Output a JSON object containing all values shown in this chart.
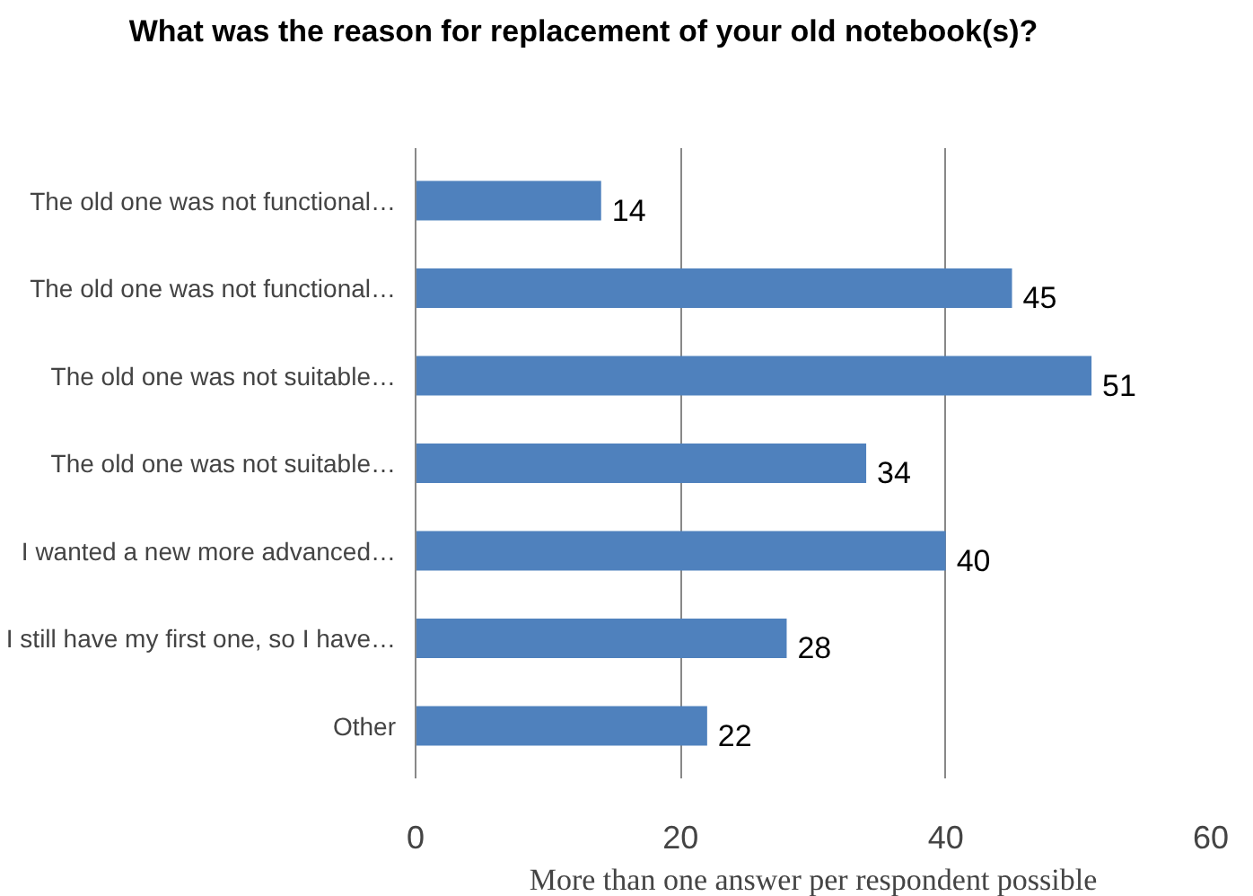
{
  "chart_data": {
    "type": "bar",
    "orientation": "horizontal",
    "title": "What was the reason for replacement of your old notebook(s)?",
    "categories": [
      "The old one was not functional…",
      "The old one was not functional…",
      "The old one was not suitable…",
      "The old one was not suitable…",
      "I wanted a new more advanced…",
      "I still have my first one, so I have…",
      "Other"
    ],
    "values": [
      14,
      45,
      51,
      34,
      40,
      28,
      22
    ],
    "color": "#4f81bd",
    "xlim": [
      0,
      60
    ],
    "xticks": [
      0,
      20,
      40,
      60
    ],
    "grid": "x",
    "data_labels": true,
    "annotations": [
      "More than one answer per respondent possible"
    ]
  }
}
